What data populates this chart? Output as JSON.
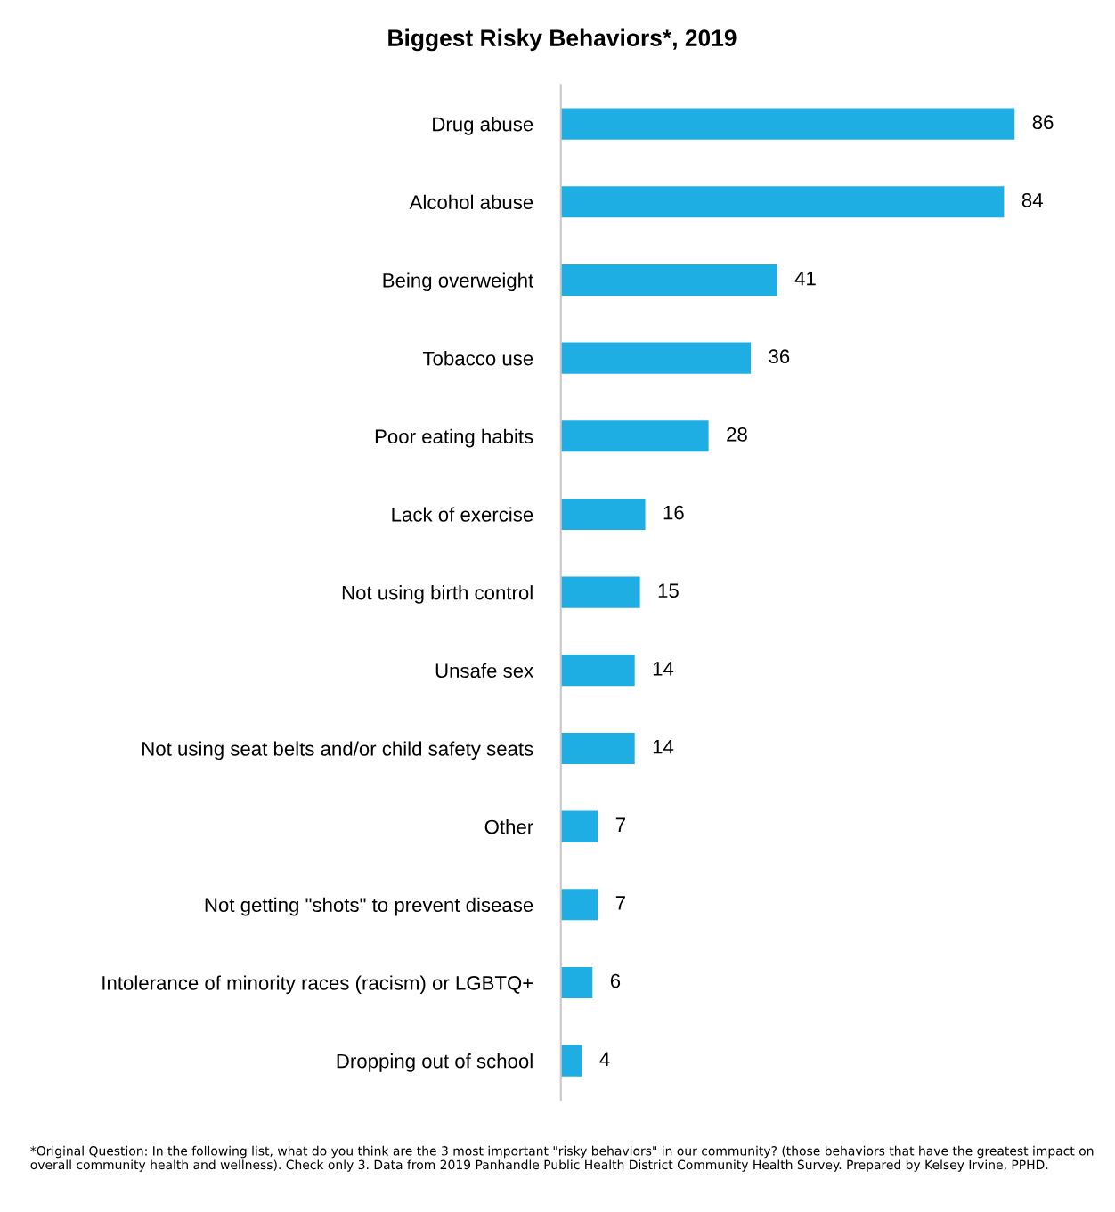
{
  "chart_data": {
    "type": "bar",
    "orientation": "horizontal",
    "title": "Biggest Risky Behaviors*, 2019",
    "categories": [
      "Drug abuse",
      "Alcohol abuse",
      "Being overweight",
      "Tobacco use",
      "Poor eating habits",
      "Lack of exercise",
      "Not using birth control",
      "Unsafe sex",
      "Not using seat belts and/or child safety seats",
      "Other",
      "Not getting \"shots\" to prevent disease",
      "Intolerance of minority races (racism) or LGBTQ+",
      "Dropping out of school"
    ],
    "values": [
      86,
      84,
      41,
      36,
      28,
      16,
      15,
      14,
      14,
      7,
      7,
      6,
      4
    ],
    "color": "#1faee3",
    "data_labels": true,
    "grid": false,
    "legend": false,
    "annotations": [
      "*Original Question: In the following list, what do you think are the 3 most important \"risky behaviors\" in our community? (those behaviors that have the greatest impact on overall community health and wellness). Check only 3. Data from 2019 Panhandle Public Health District Community Health Survey. Prepared by Kelsey Irvine, PPHD."
    ]
  }
}
